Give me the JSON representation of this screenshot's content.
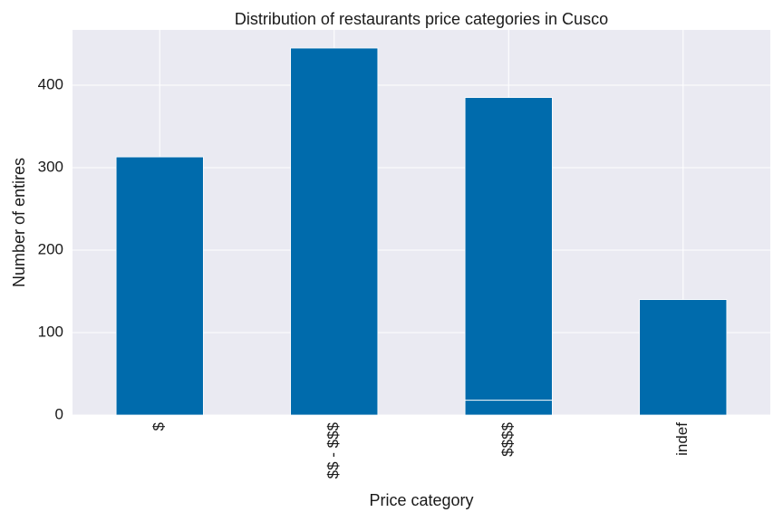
{
  "chart_data": {
    "type": "bar",
    "title": "Distribution of restaurants price categories in Cusco",
    "xlabel": "Price category",
    "ylabel": "Number of entires",
    "categories": [
      "$",
      "$$ - $$$",
      "$$$$",
      "indef"
    ],
    "values": [
      313,
      445,
      385,
      140
    ],
    "overlay_line_value": 18,
    "ylim": [
      0,
      467
    ],
    "yticks": [
      0,
      100,
      200,
      300,
      400
    ],
    "grid": true,
    "colors": {
      "bar": "#006BAC",
      "plot_bg": "#EAEAF2",
      "grid": "#FFFFFF"
    }
  }
}
